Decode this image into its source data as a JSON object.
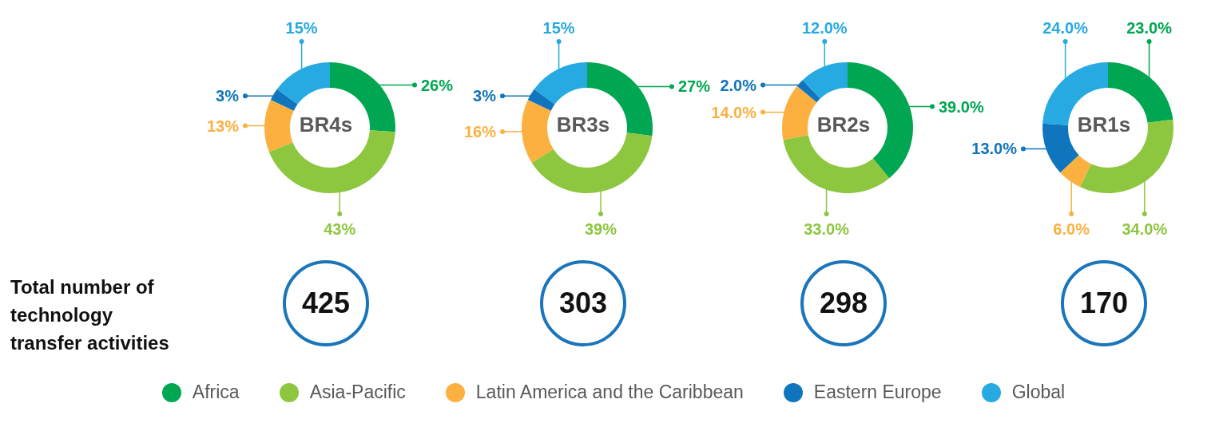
{
  "chart_data": [
    {
      "type": "donut",
      "title": "BR4s",
      "subtitle": "425",
      "categories": [
        "Africa",
        "Asia-Pacific",
        "Latin America and the Caribbean",
        "Eastern Europe",
        "Global"
      ],
      "values": [
        26,
        43,
        13,
        3,
        15
      ],
      "value_labels": [
        "26%",
        "43%",
        "13%",
        "3%",
        "15%"
      ],
      "colors": [
        "#00a651",
        "#8dc63f",
        "#fbb040",
        "#0f75bc",
        "#27aae1"
      ],
      "annotations": [
        "Total number of technology transfer activities"
      ],
      "legend": "bottom"
    },
    {
      "type": "donut",
      "title": "BR3s",
      "subtitle": "303",
      "categories": [
        null,
        null,
        null,
        null,
        null
      ],
      "values": [
        27,
        39,
        16,
        3,
        15
      ],
      "value_labels": [
        "27%",
        "39%",
        "16%",
        "3%",
        "15%"
      ],
      "colors": [
        "#00a651",
        "#8dc63f",
        "#fbb040",
        "#0f75bc",
        "#27aae1"
      ]
    },
    {
      "type": "donut",
      "title": "BR2s",
      "subtitle": "298",
      "categories": [
        null,
        null,
        null,
        null,
        null
      ],
      "values": [
        39,
        33,
        14,
        2,
        12
      ],
      "value_labels": [
        "39.0%",
        "33.0%",
        "14.0%",
        "2.0%",
        "12.0%"
      ],
      "colors": [
        "#00a651",
        "#8dc63f",
        "#fbb040",
        "#0f75bc",
        "#27aae1"
      ]
    },
    {
      "type": "donut",
      "title": "BR1s",
      "subtitle": "170",
      "categories": [
        null,
        null,
        null,
        null,
        null
      ],
      "values": [
        23,
        34,
        6,
        13,
        24
      ],
      "value_labels": [
        "23.0%",
        "34.0%",
        "6.0%",
        "13.0%",
        "24.0%"
      ],
      "colors": [
        "#00a651",
        "#8dc63f",
        "#fbb040",
        "#0f75bc",
        "#27aae1"
      ]
    }
  ]
}
